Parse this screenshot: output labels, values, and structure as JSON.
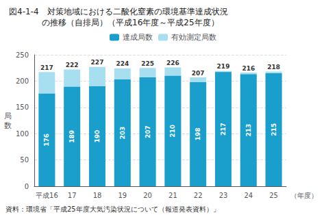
{
  "chart_data": {
    "type": "bar",
    "title": "図4-1-4　対策地域における二酸化窒素の環境基準達成状況\n　　　　の推移（自排局）（平成16年度～平成25年度）",
    "xlabel": "（年度）",
    "ylabel": "局\n数",
    "annotations": [
      "資料：環境省「平成25年度大気汚染状況について（報道発表資料）」"
    ],
    "categories": [
      "平成16",
      "17",
      "18",
      "19",
      "20",
      "21",
      "22",
      "23",
      "24",
      "25"
    ],
    "series": [
      {
        "name": "達成局数",
        "color": "#1a9fcc",
        "values": [
          176,
          189,
          190,
          203,
          207,
          210,
          198,
          217,
          213,
          215
        ]
      },
      {
        "name": "有効測定局数",
        "color": "#a8dff0",
        "values": [
          217,
          222,
          227,
          224,
          225,
          226,
          207,
          219,
          216,
          218
        ]
      }
    ],
    "ylim": [
      0,
      250
    ],
    "yticks": [
      0,
      50,
      100,
      150,
      200,
      250
    ],
    "grid": true,
    "legend": "top",
    "data_labels": true
  }
}
